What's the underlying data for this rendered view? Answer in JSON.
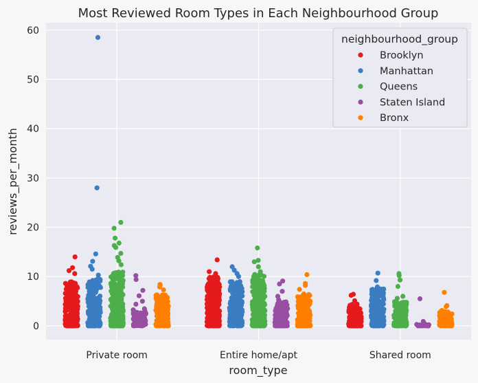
{
  "chart_data": {
    "type": "strip",
    "title": "Most Reviewed Room Types in Each Neighbourhood Group",
    "xlabel": "room_type",
    "ylabel": "reviews_per_month",
    "categories": [
      "Private room",
      "Entire home/apt",
      "Shared room"
    ],
    "ylim": [
      -2.8,
      61.5
    ],
    "yticks": [
      0,
      10,
      20,
      30,
      40,
      50,
      60
    ],
    "grid": true,
    "legend": {
      "title": "neighbourhood_group",
      "placement": "top-right"
    },
    "series": [
      {
        "name": "Brooklyn",
        "color": "#e41a1c",
        "max_by_category": [
          14.0,
          13.4,
          6.4
        ],
        "dense_to_by_category": [
          9.0,
          10.0,
          4.5
        ],
        "outliers": [
          [
            14.0,
            11.8,
            11.2,
            10.6
          ],
          [
            13.4,
            11.0,
            10.6
          ],
          [
            6.4,
            6.2,
            5.1
          ]
        ]
      },
      {
        "name": "Manhattan",
        "color": "#3a7dc1",
        "max_by_category": [
          58.5,
          12.0,
          10.7
        ],
        "dense_to_by_category": [
          9.6,
          9.0,
          7.5
        ],
        "outliers": [
          [
            58.5,
            28.0,
            14.6,
            13.1,
            12.1,
            11.5,
            10.3
          ],
          [
            12.0,
            11.3,
            10.6,
            10.0
          ],
          [
            10.7,
            9.2,
            7.9
          ]
        ]
      },
      {
        "name": "Queens",
        "color": "#4daf4a",
        "max_by_category": [
          21.0,
          15.8,
          10.6
        ],
        "dense_to_by_category": [
          11.0,
          10.5,
          5.0
        ],
        "outliers": [
          [
            21.0,
            19.8,
            17.8,
            16.8,
            16.3,
            15.9,
            14.7,
            13.9,
            13.2,
            12.4
          ],
          [
            15.8,
            13.3,
            13.0,
            12.0,
            11.0
          ],
          [
            10.6,
            10.2,
            9.3,
            8.0,
            6.0,
            5.6
          ]
        ]
      },
      {
        "name": "Staten Island",
        "color": "#984ea3",
        "max_by_category": [
          10.2,
          9.1,
          5.5
        ],
        "dense_to_by_category": [
          3.5,
          5.0,
          0.3
        ],
        "outliers": [
          [
            10.2,
            9.4,
            7.2,
            6.1,
            5.0,
            4.4
          ],
          [
            9.1,
            8.5,
            7.0,
            6.0,
            5.3
          ],
          [
            5.5,
            0.9,
            0.4,
            0.2
          ]
        ]
      },
      {
        "name": "Bronx",
        "color": "#ff7f00",
        "max_by_category": [
          8.4,
          10.4,
          6.8
        ],
        "dense_to_by_category": [
          6.3,
          6.5,
          3.2
        ],
        "outliers": [
          [
            8.4,
            8.2,
            7.9,
            7.3
          ],
          [
            10.4,
            8.6,
            8.2,
            7.4
          ],
          [
            6.8,
            4.1,
            3.9
          ]
        ]
      }
    ]
  }
}
